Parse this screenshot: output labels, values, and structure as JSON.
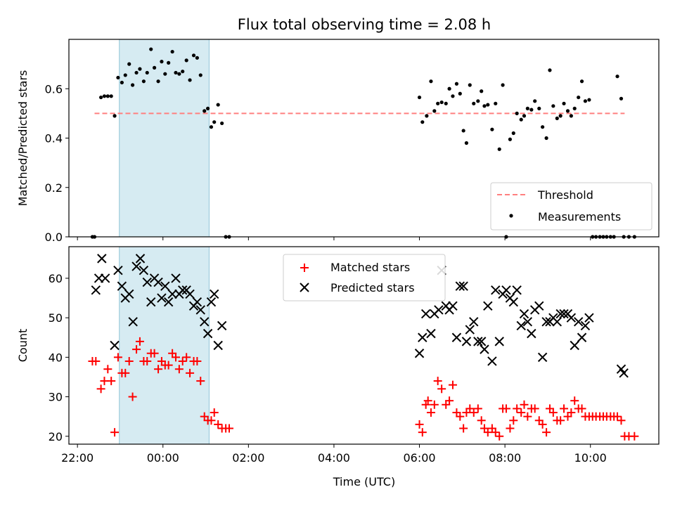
{
  "chart_data": {
    "type": "scatter",
    "title": "Flux total observing time = 2.08 h",
    "xlabel": "Time (UTC)",
    "x_unit": "hours from 00:00 UTC",
    "xlim": [
      -2.2,
      11.6
    ],
    "xticks": [
      -2,
      0,
      2,
      4,
      6,
      8,
      10
    ],
    "xtick_labels": [
      "22:00",
      "00:00",
      "02:00",
      "04:00",
      "06:00",
      "08:00",
      "10:00"
    ],
    "highlight_span": [
      -1.02,
      1.08
    ],
    "highlight_color": "#add8e6",
    "panels": [
      {
        "ylabel": "Matched/Predicted stars",
        "ylim": [
          0,
          0.8
        ],
        "yticks": [
          0.0,
          0.2,
          0.4,
          0.6
        ],
        "ytick_labels": [
          "0.0",
          "0.2",
          "0.4",
          "0.6"
        ],
        "legend_position": "lower right",
        "threshold": {
          "name": "Threshold",
          "value": 0.5,
          "x_range": [
            -1.6,
            10.8
          ],
          "color": "#ff7f7f"
        },
        "series": [
          {
            "name": "Measurements",
            "marker": "dot",
            "color": "#000000",
            "x": [
              -1.65,
              -1.6,
              -1.45,
              -1.37,
              -1.29,
              -1.21,
              -1.13,
              -1.05,
              -0.96,
              -0.88,
              -0.79,
              -0.71,
              -0.62,
              -0.54,
              -0.45,
              -0.37,
              -0.28,
              -0.2,
              -0.11,
              -0.03,
              0.05,
              0.13,
              0.22,
              0.3,
              0.38,
              0.46,
              0.55,
              0.63,
              0.72,
              0.8,
              0.88,
              0.97,
              1.05,
              1.13,
              1.2,
              1.29,
              1.38,
              1.47,
              1.55,
              6.0,
              6.07,
              6.17,
              6.27,
              6.35,
              6.43,
              6.52,
              6.62,
              6.7,
              6.78,
              6.87,
              6.95,
              7.03,
              7.1,
              7.18,
              7.27,
              7.37,
              7.45,
              7.52,
              7.6,
              7.7,
              7.78,
              7.87,
              7.95,
              8.03,
              8.12,
              8.2,
              8.28,
              8.38,
              8.45,
              8.53,
              8.62,
              8.7,
              8.8,
              8.88,
              8.97,
              9.05,
              9.13,
              9.22,
              9.3,
              9.38,
              9.47,
              9.55,
              9.63,
              9.72,
              9.8,
              9.88,
              9.97,
              10.05,
              10.13,
              10.22,
              10.3,
              10.38,
              10.47,
              10.55,
              10.63,
              10.72,
              10.78,
              10.9,
              11.03
            ],
            "y": [
              0.0,
              0.0,
              0.565,
              0.57,
              0.57,
              0.57,
              0.49,
              0.645,
              0.625,
              0.655,
              0.7,
              0.615,
              0.665,
              0.68,
              0.63,
              0.665,
              0.76,
              0.685,
              0.63,
              0.71,
              0.66,
              0.705,
              0.75,
              0.665,
              0.66,
              0.67,
              0.715,
              0.635,
              0.735,
              0.725,
              0.655,
              0.51,
              0.52,
              0.445,
              0.465,
              0.535,
              0.46,
              0.0,
              0.0,
              0.565,
              0.465,
              0.49,
              0.63,
              0.51,
              0.54,
              0.545,
              0.54,
              0.6,
              0.57,
              0.62,
              0.58,
              0.43,
              0.38,
              0.615,
              0.54,
              0.55,
              0.59,
              0.53,
              0.535,
              0.435,
              0.54,
              0.355,
              0.615,
              0.0,
              0.395,
              0.42,
              0.5,
              0.475,
              0.49,
              0.52,
              0.515,
              0.55,
              0.52,
              0.445,
              0.4,
              0.675,
              0.53,
              0.48,
              0.49,
              0.54,
              0.51,
              0.49,
              0.52,
              0.565,
              0.63,
              0.55,
              0.555,
              0.0,
              0.0,
              0.0,
              0.0,
              0.0,
              0.0,
              0.0,
              0.65,
              0.56,
              0.0,
              0.0,
              0.0
            ]
          }
        ]
      },
      {
        "ylabel": "Count",
        "ylim": [
          18,
          68
        ],
        "yticks": [
          20,
          30,
          40,
          50,
          60
        ],
        "ytick_labels": [
          "20",
          "30",
          "40",
          "50",
          "60"
        ],
        "legend_position": "upper center",
        "series": [
          {
            "name": "Matched stars",
            "marker": "plus",
            "color": "#ff0000",
            "x": [
              -1.65,
              -1.57,
              -1.45,
              -1.37,
              -1.29,
              -1.21,
              -1.13,
              -1.05,
              -0.96,
              -0.88,
              -0.79,
              -0.71,
              -0.62,
              -0.54,
              -0.45,
              -0.37,
              -0.28,
              -0.2,
              -0.11,
              -0.03,
              0.05,
              0.13,
              0.22,
              0.3,
              0.38,
              0.46,
              0.55,
              0.63,
              0.72,
              0.8,
              0.88,
              0.97,
              1.05,
              1.13,
              1.2,
              1.29,
              1.38,
              1.47,
              1.55,
              6.0,
              6.07,
              6.15,
              6.2,
              6.27,
              6.35,
              6.43,
              6.52,
              6.62,
              6.7,
              6.78,
              6.87,
              6.95,
              7.03,
              7.1,
              7.18,
              7.27,
              7.37,
              7.45,
              7.52,
              7.6,
              7.7,
              7.78,
              7.87,
              7.95,
              8.03,
              8.12,
              8.2,
              8.28,
              8.38,
              8.45,
              8.53,
              8.62,
              8.7,
              8.8,
              8.88,
              8.97,
              9.05,
              9.13,
              9.22,
              9.3,
              9.38,
              9.47,
              9.55,
              9.63,
              9.72,
              9.8,
              9.88,
              9.97,
              10.05,
              10.13,
              10.22,
              10.3,
              10.38,
              10.47,
              10.55,
              10.63,
              10.72,
              10.8,
              10.9,
              11.03
            ],
            "y": [
              39,
              39,
              32,
              34,
              37,
              34,
              21,
              40,
              36,
              36,
              39,
              30,
              42,
              44,
              39,
              39,
              41,
              41,
              37,
              39,
              38,
              38,
              41,
              40,
              37,
              39,
              40,
              36,
              39,
              39,
              34,
              25,
              24,
              24,
              26,
              23,
              22,
              22,
              22,
              23,
              21,
              28,
              29,
              26,
              28,
              34,
              32,
              28,
              29,
              33,
              26,
              25,
              22,
              26,
              27,
              26,
              27,
              24,
              22,
              21,
              22,
              21,
              20,
              27,
              27,
              22,
              24,
              27,
              26,
              28,
              25,
              27,
              27,
              24,
              23,
              21,
              27,
              26,
              24,
              24,
              27,
              25,
              26,
              29,
              27,
              27,
              25,
              25,
              25,
              25,
              25,
              25,
              25,
              25,
              25,
              25,
              24,
              20,
              20,
              20
            ]
          },
          {
            "name": "Predicted stars",
            "marker": "x",
            "color": "#000000",
            "x": [
              -1.57,
              -1.5,
              -1.43,
              -1.35,
              -1.13,
              -1.05,
              -0.96,
              -0.88,
              -0.79,
              -0.7,
              -0.62,
              -0.53,
              -0.45,
              -0.37,
              -0.28,
              -0.2,
              -0.11,
              -0.03,
              0.05,
              0.13,
              0.22,
              0.3,
              0.38,
              0.46,
              0.55,
              0.63,
              0.72,
              0.8,
              0.88,
              0.97,
              1.05,
              1.13,
              1.2,
              1.29,
              1.38,
              6.0,
              6.07,
              6.15,
              6.27,
              6.35,
              6.45,
              6.52,
              6.62,
              6.7,
              6.78,
              6.87,
              6.95,
              7.03,
              7.1,
              7.18,
              7.27,
              7.37,
              7.45,
              7.52,
              7.6,
              7.7,
              7.78,
              7.87,
              7.95,
              8.03,
              8.12,
              8.2,
              8.28,
              8.38,
              8.45,
              8.53,
              8.62,
              8.7,
              8.8,
              8.88,
              8.97,
              9.05,
              9.13,
              9.22,
              9.3,
              9.38,
              9.47,
              9.55,
              9.63,
              9.72,
              9.8,
              9.88,
              9.97,
              10.72,
              10.78
            ],
            "y": [
              57,
              60,
              65,
              60,
              43,
              62,
              58,
              55,
              56,
              49,
              63,
              65,
              62,
              59,
              54,
              60,
              59,
              55,
              58,
              54,
              56,
              60,
              56,
              57,
              57,
              56,
              53,
              54,
              52,
              49,
              46,
              54,
              56,
              43,
              48,
              41,
              45,
              51,
              46,
              51,
              52,
              62,
              53,
              52,
              53,
              45,
              58,
              58,
              44,
              47,
              49,
              44,
              44,
              42,
              53,
              39,
              57,
              44,
              56,
              57,
              55,
              54,
              57,
              48,
              51,
              49,
              46,
              52,
              53,
              40,
              49,
              49,
              50,
              49,
              51,
              51,
              51,
              50,
              43,
              49,
              45,
              48,
              50,
              37,
              36
            ]
          }
        ]
      }
    ]
  }
}
